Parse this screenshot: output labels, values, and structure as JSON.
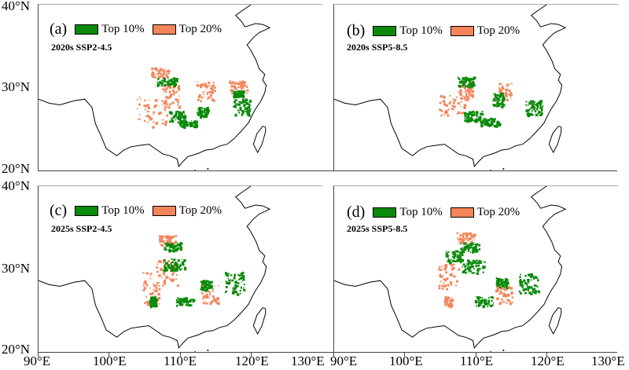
{
  "legend": {
    "top10": "Top 10%",
    "top20": "Top 20%",
    "colors": {
      "top10": "#0a8a0a",
      "top20": "#f4845a"
    }
  },
  "panels": [
    {
      "letter": "(a)",
      "subtitle": "2020s SSP2-4.5"
    },
    {
      "letter": "(b)",
      "subtitle": "2020s SSP5-8.5"
    },
    {
      "letter": "(c)",
      "subtitle": "2025s SSP2-4.5"
    },
    {
      "letter": "(d)",
      "subtitle": "2025s SSP5-8.5"
    }
  ],
  "lat_labels": [
    "40°N",
    "30°N",
    "20°N"
  ],
  "lon_labels": [
    "90°E",
    "100°E",
    "110°E",
    "120°E",
    "130°E",
    "90°E",
    "100°E",
    "110°E",
    "120°E",
    "130°E"
  ]
}
